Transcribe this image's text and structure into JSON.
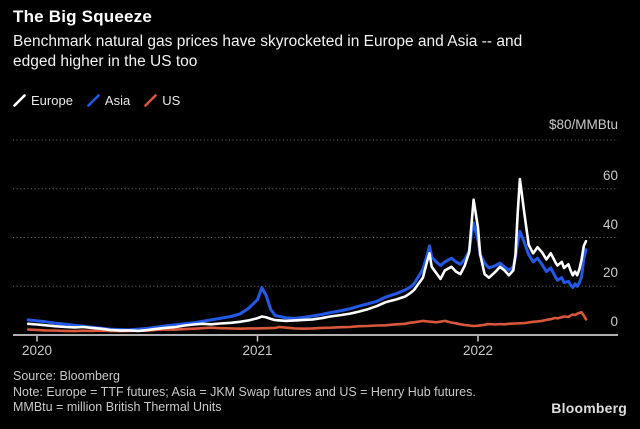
{
  "header": {
    "title": "The Big Squeeze",
    "subtitle_line1": "Benchmark natural gas prices have skyrocketed in Europe and Asia -- and",
    "subtitle_line2": "edged higher in the US too"
  },
  "legend": {
    "items": [
      {
        "label": "Europe",
        "color": "#ffffff"
      },
      {
        "label": "Asia",
        "color": "#2359e6"
      },
      {
        "label": "US",
        "color": "#d8583b"
      }
    ]
  },
  "chart_data": {
    "type": "line",
    "title": "The Big Squeeze",
    "unit_label": "$80/MMBtu",
    "ylabel": "$/MMBtu",
    "ylim": [
      0,
      80
    ],
    "xlim": [
      2019.95,
      2022.63
    ],
    "grid": "dotted horizontal",
    "grid_color": "#6f6f6f",
    "axis_color": "#c9c9c9",
    "legend_position": "top-left",
    "y_gridlines": [
      20,
      40,
      60,
      80
    ],
    "y_tick_labels": [
      {
        "value": 0,
        "label": "0"
      },
      {
        "value": 20,
        "label": "20"
      },
      {
        "value": 40,
        "label": "40"
      },
      {
        "value": 60,
        "label": "60"
      }
    ],
    "x_ticks": [
      {
        "value": 2020,
        "label": "2020"
      },
      {
        "value": 2021,
        "label": "2021"
      },
      {
        "value": 2022,
        "label": "2022"
      }
    ],
    "series": [
      {
        "name": "Europe",
        "color": "#ffffff",
        "width": 2.6,
        "points": [
          [
            2019.96,
            4.6
          ],
          [
            2020.0,
            4.3
          ],
          [
            2020.04,
            4.0
          ],
          [
            2020.08,
            3.6
          ],
          [
            2020.13,
            3.3
          ],
          [
            2020.17,
            3.1
          ],
          [
            2020.21,
            3.3
          ],
          [
            2020.25,
            2.9
          ],
          [
            2020.29,
            2.6
          ],
          [
            2020.33,
            2.1
          ],
          [
            2020.38,
            1.8
          ],
          [
            2020.42,
            1.9
          ],
          [
            2020.46,
            1.7
          ],
          [
            2020.5,
            2.0
          ],
          [
            2020.54,
            2.5
          ],
          [
            2020.58,
            2.9
          ],
          [
            2020.63,
            3.3
          ],
          [
            2020.67,
            3.9
          ],
          [
            2020.71,
            4.3
          ],
          [
            2020.75,
            4.6
          ],
          [
            2020.79,
            4.4
          ],
          [
            2020.83,
            4.7
          ],
          [
            2020.88,
            5.0
          ],
          [
            2020.92,
            5.4
          ],
          [
            2020.96,
            6.0
          ],
          [
            2021.0,
            6.9
          ],
          [
            2021.02,
            7.6
          ],
          [
            2021.04,
            7.2
          ],
          [
            2021.06,
            6.6
          ],
          [
            2021.08,
            6.1
          ],
          [
            2021.13,
            5.8
          ],
          [
            2021.17,
            6.0
          ],
          [
            2021.21,
            6.2
          ],
          [
            2021.25,
            6.4
          ],
          [
            2021.29,
            6.9
          ],
          [
            2021.33,
            7.6
          ],
          [
            2021.38,
            8.2
          ],
          [
            2021.42,
            8.8
          ],
          [
            2021.46,
            9.6
          ],
          [
            2021.5,
            10.6
          ],
          [
            2021.54,
            11.8
          ],
          [
            2021.58,
            13.4
          ],
          [
            2021.63,
            14.6
          ],
          [
            2021.67,
            15.8
          ],
          [
            2021.69,
            17.0
          ],
          [
            2021.71,
            18.5
          ],
          [
            2021.73,
            21.0
          ],
          [
            2021.75,
            23.5
          ],
          [
            2021.77,
            30.5
          ],
          [
            2021.78,
            33.5
          ],
          [
            2021.79,
            28.0
          ],
          [
            2021.81,
            25.5
          ],
          [
            2021.83,
            23.0
          ],
          [
            2021.85,
            26.5
          ],
          [
            2021.88,
            28.0
          ],
          [
            2021.9,
            26.0
          ],
          [
            2021.92,
            25.0
          ],
          [
            2021.94,
            28.5
          ],
          [
            2021.96,
            34.0
          ],
          [
            2021.97,
            45.0
          ],
          [
            2021.98,
            55.5
          ],
          [
            2022.0,
            44.0
          ],
          [
            2022.01,
            33.0
          ],
          [
            2022.03,
            25.0
          ],
          [
            2022.05,
            23.5
          ],
          [
            2022.08,
            26.0
          ],
          [
            2022.1,
            28.0
          ],
          [
            2022.12,
            26.5
          ],
          [
            2022.14,
            24.5
          ],
          [
            2022.16,
            26.5
          ],
          [
            2022.17,
            33.0
          ],
          [
            2022.18,
            50.0
          ],
          [
            2022.19,
            64.0
          ],
          [
            2022.21,
            50.0
          ],
          [
            2022.23,
            37.0
          ],
          [
            2022.25,
            33.5
          ],
          [
            2022.27,
            36.0
          ],
          [
            2022.29,
            34.0
          ],
          [
            2022.31,
            31.0
          ],
          [
            2022.33,
            33.5
          ],
          [
            2022.35,
            30.0
          ],
          [
            2022.36,
            28.5
          ],
          [
            2022.38,
            30.0
          ],
          [
            2022.39,
            27.5
          ],
          [
            2022.41,
            29.0
          ],
          [
            2022.42,
            26.5
          ],
          [
            2022.43,
            24.5
          ],
          [
            2022.44,
            26.0
          ],
          [
            2022.45,
            24.5
          ],
          [
            2022.46,
            27.0
          ],
          [
            2022.47,
            31.0
          ],
          [
            2022.48,
            36.5
          ],
          [
            2022.49,
            38.5
          ]
        ]
      },
      {
        "name": "Asia",
        "color": "#2359e6",
        "width": 3,
        "points": [
          [
            2019.96,
            6.2
          ],
          [
            2020.0,
            5.8
          ],
          [
            2020.04,
            5.4
          ],
          [
            2020.08,
            4.9
          ],
          [
            2020.13,
            4.4
          ],
          [
            2020.17,
            4.0
          ],
          [
            2020.21,
            3.6
          ],
          [
            2020.25,
            3.2
          ],
          [
            2020.29,
            2.8
          ],
          [
            2020.33,
            2.4
          ],
          [
            2020.38,
            2.2
          ],
          [
            2020.42,
            2.1
          ],
          [
            2020.46,
            2.4
          ],
          [
            2020.5,
            2.7
          ],
          [
            2020.54,
            3.2
          ],
          [
            2020.58,
            3.7
          ],
          [
            2020.63,
            4.2
          ],
          [
            2020.67,
            4.6
          ],
          [
            2020.71,
            5.0
          ],
          [
            2020.75,
            5.6
          ],
          [
            2020.79,
            6.2
          ],
          [
            2020.83,
            6.8
          ],
          [
            2020.88,
            7.6
          ],
          [
            2020.92,
            8.6
          ],
          [
            2020.96,
            11.0
          ],
          [
            2021.0,
            14.5
          ],
          [
            2021.02,
            19.5
          ],
          [
            2021.04,
            16.0
          ],
          [
            2021.06,
            10.5
          ],
          [
            2021.08,
            8.0
          ],
          [
            2021.13,
            7.0
          ],
          [
            2021.17,
            6.8
          ],
          [
            2021.21,
            7.2
          ],
          [
            2021.25,
            7.8
          ],
          [
            2021.29,
            8.4
          ],
          [
            2021.33,
            9.2
          ],
          [
            2021.38,
            10.0
          ],
          [
            2021.42,
            10.8
          ],
          [
            2021.46,
            11.8
          ],
          [
            2021.5,
            12.8
          ],
          [
            2021.54,
            13.8
          ],
          [
            2021.58,
            15.5
          ],
          [
            2021.63,
            17.0
          ],
          [
            2021.67,
            18.5
          ],
          [
            2021.69,
            19.5
          ],
          [
            2021.71,
            21.0
          ],
          [
            2021.73,
            24.0
          ],
          [
            2021.75,
            27.0
          ],
          [
            2021.77,
            33.0
          ],
          [
            2021.78,
            36.5
          ],
          [
            2021.79,
            32.0
          ],
          [
            2021.81,
            30.0
          ],
          [
            2021.83,
            28.5
          ],
          [
            2021.85,
            30.0
          ],
          [
            2021.88,
            31.5
          ],
          [
            2021.9,
            30.0
          ],
          [
            2021.92,
            29.0
          ],
          [
            2021.94,
            31.0
          ],
          [
            2021.96,
            34.5
          ],
          [
            2021.97,
            41.0
          ],
          [
            2021.98,
            46.0
          ],
          [
            2022.0,
            39.0
          ],
          [
            2022.01,
            33.0
          ],
          [
            2022.03,
            29.5
          ],
          [
            2022.05,
            27.5
          ],
          [
            2022.08,
            28.5
          ],
          [
            2022.1,
            29.5
          ],
          [
            2022.12,
            28.0
          ],
          [
            2022.14,
            26.5
          ],
          [
            2022.16,
            28.0
          ],
          [
            2022.17,
            32.0
          ],
          [
            2022.18,
            38.0
          ],
          [
            2022.19,
            42.5
          ],
          [
            2022.21,
            38.0
          ],
          [
            2022.23,
            33.0
          ],
          [
            2022.25,
            30.0
          ],
          [
            2022.27,
            31.5
          ],
          [
            2022.29,
            29.0
          ],
          [
            2022.31,
            26.0
          ],
          [
            2022.33,
            27.5
          ],
          [
            2022.35,
            24.0
          ],
          [
            2022.36,
            22.5
          ],
          [
            2022.38,
            23.5
          ],
          [
            2022.39,
            21.5
          ],
          [
            2022.41,
            22.0
          ],
          [
            2022.42,
            20.5
          ],
          [
            2022.43,
            19.5
          ],
          [
            2022.44,
            21.0
          ],
          [
            2022.45,
            20.0
          ],
          [
            2022.46,
            21.5
          ],
          [
            2022.47,
            24.0
          ],
          [
            2022.48,
            31.5
          ],
          [
            2022.49,
            35.0
          ]
        ]
      },
      {
        "name": "US",
        "color": "#d8583b",
        "width": 2.6,
        "points": [
          [
            2019.96,
            2.2
          ],
          [
            2020.0,
            2.1
          ],
          [
            2020.04,
            1.9
          ],
          [
            2020.08,
            1.8
          ],
          [
            2020.13,
            1.7
          ],
          [
            2020.17,
            1.6
          ],
          [
            2020.21,
            1.75
          ],
          [
            2020.25,
            1.7
          ],
          [
            2020.29,
            1.8
          ],
          [
            2020.33,
            1.7
          ],
          [
            2020.38,
            1.6
          ],
          [
            2020.42,
            1.65
          ],
          [
            2020.46,
            1.75
          ],
          [
            2020.5,
            1.8
          ],
          [
            2020.54,
            2.1
          ],
          [
            2020.58,
            2.3
          ],
          [
            2020.63,
            2.2
          ],
          [
            2020.67,
            2.4
          ],
          [
            2020.71,
            2.6
          ],
          [
            2020.75,
            2.8
          ],
          [
            2020.79,
            3.0
          ],
          [
            2020.83,
            2.8
          ],
          [
            2020.88,
            2.7
          ],
          [
            2020.92,
            2.6
          ],
          [
            2020.96,
            2.7
          ],
          [
            2021.0,
            2.7
          ],
          [
            2021.04,
            2.8
          ],
          [
            2021.08,
            2.9
          ],
          [
            2021.1,
            3.3
          ],
          [
            2021.13,
            3.0
          ],
          [
            2021.17,
            2.7
          ],
          [
            2021.21,
            2.6
          ],
          [
            2021.25,
            2.7
          ],
          [
            2021.29,
            2.9
          ],
          [
            2021.33,
            3.0
          ],
          [
            2021.38,
            3.2
          ],
          [
            2021.42,
            3.3
          ],
          [
            2021.46,
            3.6
          ],
          [
            2021.5,
            3.7
          ],
          [
            2021.54,
            3.9
          ],
          [
            2021.58,
            4.0
          ],
          [
            2021.63,
            4.4
          ],
          [
            2021.67,
            4.6
          ],
          [
            2021.69,
            5.0
          ],
          [
            2021.71,
            5.2
          ],
          [
            2021.73,
            5.5
          ],
          [
            2021.75,
            5.8
          ],
          [
            2021.77,
            5.6
          ],
          [
            2021.79,
            5.4
          ],
          [
            2021.81,
            5.2
          ],
          [
            2021.83,
            5.5
          ],
          [
            2021.85,
            5.8
          ],
          [
            2021.88,
            5.1
          ],
          [
            2021.9,
            4.8
          ],
          [
            2021.92,
            4.4
          ],
          [
            2021.94,
            4.1
          ],
          [
            2021.96,
            3.9
          ],
          [
            2021.98,
            3.7
          ],
          [
            2022.0,
            3.8
          ],
          [
            2022.03,
            4.2
          ],
          [
            2022.05,
            4.5
          ],
          [
            2022.08,
            4.3
          ],
          [
            2022.1,
            4.5
          ],
          [
            2022.12,
            4.4
          ],
          [
            2022.14,
            4.6
          ],
          [
            2022.17,
            4.7
          ],
          [
            2022.21,
            4.9
          ],
          [
            2022.25,
            5.4
          ],
          [
            2022.27,
            5.6
          ],
          [
            2022.29,
            5.8
          ],
          [
            2022.31,
            6.2
          ],
          [
            2022.33,
            6.5
          ],
          [
            2022.35,
            7.0
          ],
          [
            2022.36,
            6.8
          ],
          [
            2022.38,
            7.3
          ],
          [
            2022.39,
            7.6
          ],
          [
            2022.41,
            7.4
          ],
          [
            2022.42,
            8.0
          ],
          [
            2022.43,
            8.4
          ],
          [
            2022.44,
            8.2
          ],
          [
            2022.45,
            8.7
          ],
          [
            2022.46,
            9.1
          ],
          [
            2022.47,
            9.3
          ],
          [
            2022.48,
            8.0
          ],
          [
            2022.49,
            6.4
          ]
        ]
      }
    ]
  },
  "footer": {
    "source": "Source: Bloomberg",
    "note_line1": "Note: Europe = TTF futures; Asia = JKM Swap futures and US = Henry Hub futures.",
    "note_line2": "MMBtu = million British Thermal Units",
    "brand": "Bloomberg"
  }
}
